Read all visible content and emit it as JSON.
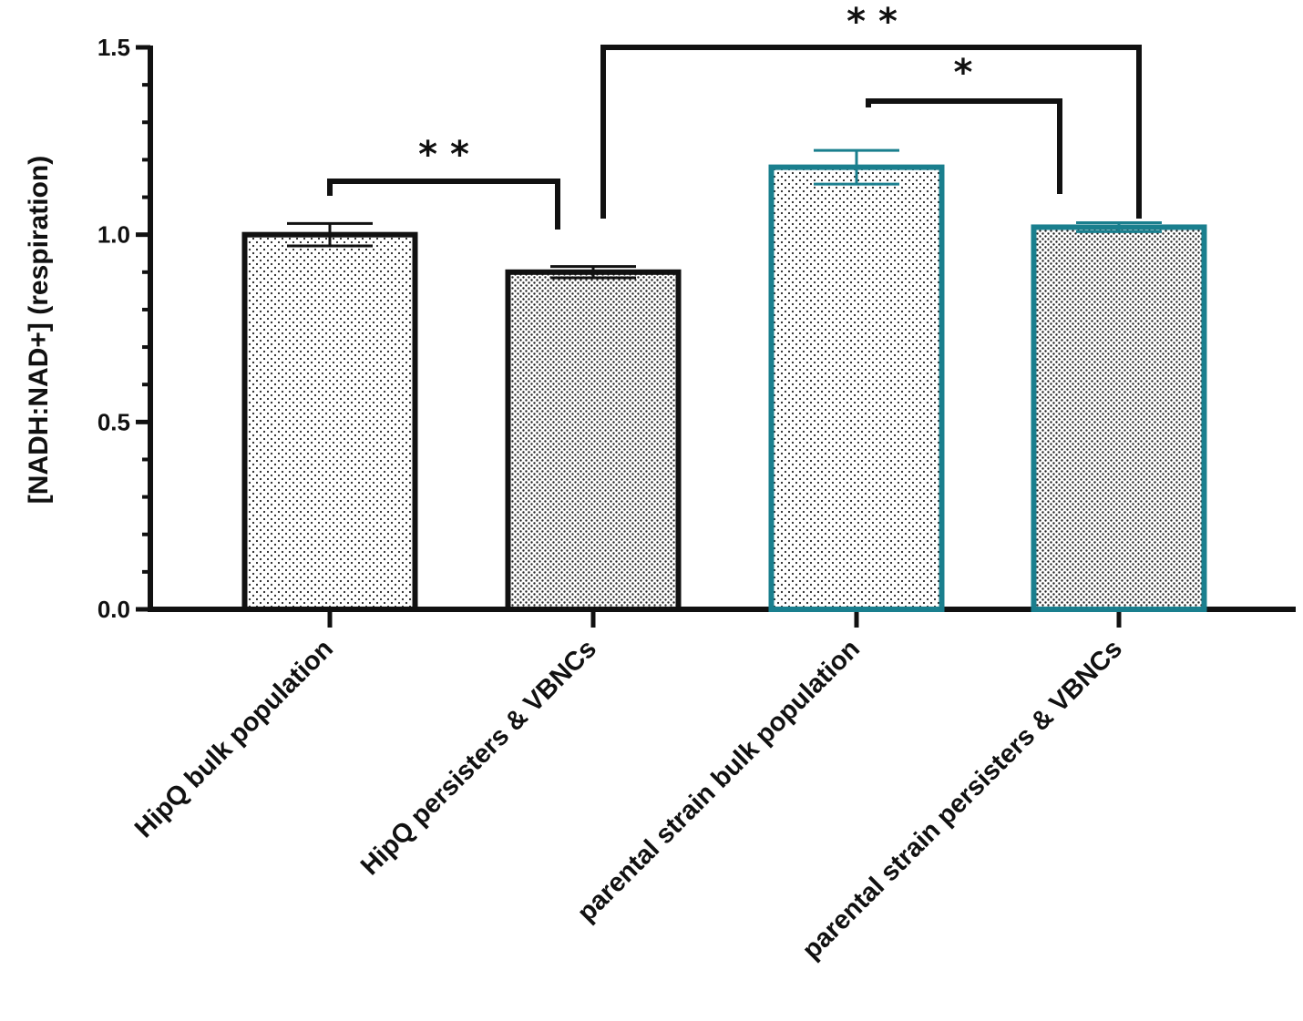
{
  "chart_data": {
    "type": "bar",
    "title": "",
    "xlabel": "",
    "ylabel": "[NADH:NAD+] (respiration)",
    "ylim": [
      0,
      1.5
    ],
    "yticks": [
      0.0,
      0.5,
      1.0,
      1.5
    ],
    "ytick_labels": [
      "0.0",
      "0.5",
      "1.0",
      "1.5"
    ],
    "categories": [
      "HipQ bulk population",
      "HipQ persisters & VBNCs",
      "parental strain bulk population",
      "parental strain persisters & VBNCs"
    ],
    "values": [
      1.0,
      0.9,
      1.18,
      1.02
    ],
    "errors": [
      0.03,
      0.015,
      0.045,
      0.012
    ],
    "bar_colors": [
      "#111111",
      "#111111",
      "#1a7f8e",
      "#1a7f8e"
    ],
    "patterns": [
      "sparse-dots",
      "dense-dots",
      "sparse-dots",
      "dense-dots"
    ],
    "significance": [
      {
        "from": 0,
        "to": 1,
        "label": "**"
      },
      {
        "from": 2,
        "to": 3,
        "label": "*"
      },
      {
        "from": 1,
        "to": 3,
        "label": "**"
      }
    ]
  }
}
